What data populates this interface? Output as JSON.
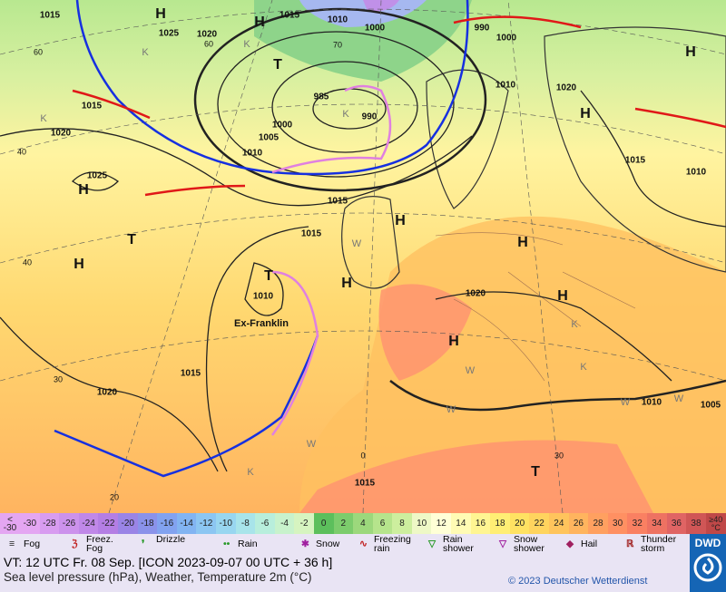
{
  "map": {
    "isobar_labels": [
      "1015",
      "1025",
      "1020",
      "1015",
      "1010",
      "1000",
      "990",
      "1000",
      "1010",
      "1020",
      "985",
      "990",
      "1000",
      "1005",
      "1010",
      "1015",
      "1020",
      "1025",
      "1015",
      "1015",
      "1010",
      "1020",
      "1015",
      "1020",
      "1010",
      "1005",
      "1015",
      "1015",
      "1010"
    ],
    "grid_labels": [
      "60",
      "60",
      "70",
      "40",
      "40",
      "30",
      "20",
      "0",
      "30"
    ],
    "centers": [
      "H",
      "H",
      "H",
      "H",
      "H",
      "H",
      "H",
      "H",
      "H",
      "H",
      "H",
      "T",
      "T",
      "T",
      "T"
    ],
    "letters": [
      "K",
      "K",
      "K",
      "K",
      "K",
      "K",
      "K",
      "W",
      "W",
      "W",
      "W",
      "W",
      "W"
    ],
    "storm_name": "Ex-Franklin"
  },
  "scale": {
    "low_label": "<",
    "high_label": "≥40",
    "unit": "°C",
    "values": [
      -30,
      -28,
      -26,
      -24,
      -22,
      -20,
      -18,
      -16,
      -14,
      -12,
      -10,
      -8,
      -6,
      -4,
      -2,
      0,
      2,
      4,
      6,
      8,
      10,
      12,
      14,
      16,
      18,
      20,
      22,
      24,
      26,
      28,
      30,
      32,
      34,
      36,
      38
    ],
    "colors": [
      "#e4a6f2",
      "#d89cf0",
      "#cc92ec",
      "#c088e8",
      "#b47ee4",
      "#9a84e6",
      "#8a92ea",
      "#82a2f0",
      "#82b4f2",
      "#8cc6f2",
      "#98d6f0",
      "#a8e4ea",
      "#b8eedc",
      "#c8f2cc",
      "#d6f4c0",
      "#5cbf5c",
      "#7ccc6c",
      "#9cd87c",
      "#b6e48c",
      "#cdee9e",
      "#eef8c6",
      "#ffffd6",
      "#fffbb4",
      "#fff592",
      "#ffee74",
      "#ffe262",
      "#ffd45e",
      "#ffc45c",
      "#ffb45e",
      "#ffa060",
      "#ff9062",
      "#fa8062",
      "#ee7262",
      "#e06464",
      "#d05656"
    ]
  },
  "legend": [
    "Fog",
    "Freez. Fog",
    "Drizzle",
    "Rain",
    "Snow",
    "Freezing rain",
    "Rain shower",
    "Snow shower",
    "Hail",
    "Thunder storm"
  ],
  "footer": {
    "valid_time": "VT: 12 UTC Fr.  08 Sep. [ICON 2023-09-07  00 UTC + 36 h]",
    "product": "Sea level pressure (hPa), Weather, Temperature 2m (°C)",
    "copyright": "© 2023 Deutscher Wetterdienst",
    "logo": "DWD"
  }
}
